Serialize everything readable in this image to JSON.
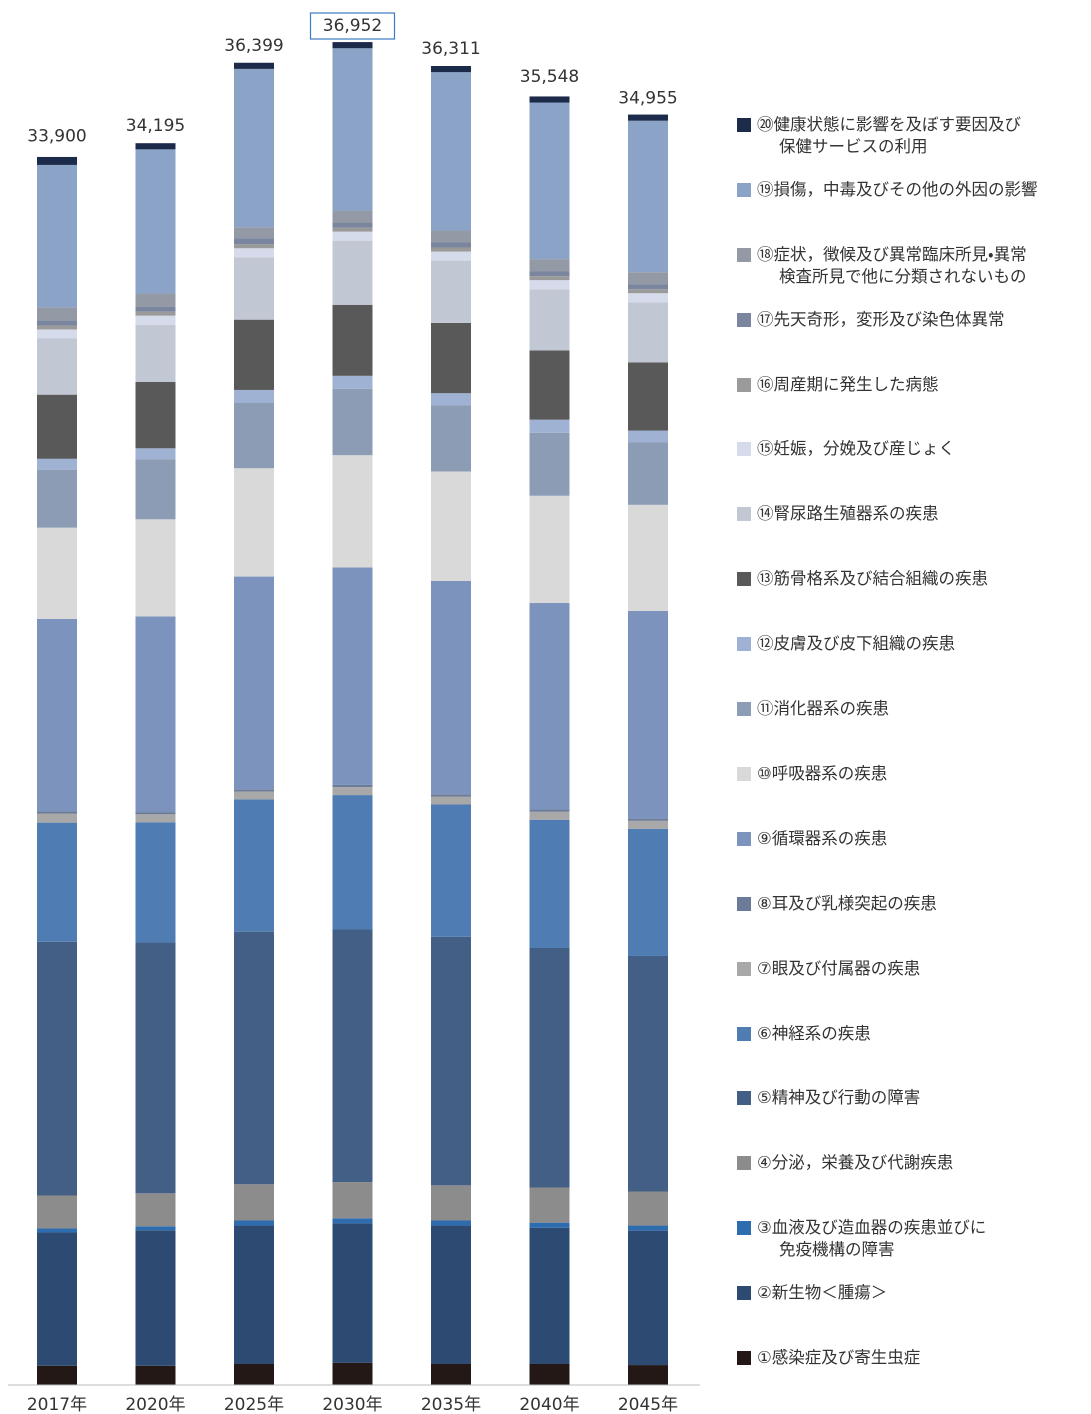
{
  "chart_data": {
    "type": "stacked_bar",
    "categories": [
      "2017年",
      "2020年",
      "2025年",
      "2030年",
      "2035年",
      "2040年",
      "2045年"
    ],
    "totals": [
      33900,
      34195,
      36399,
      36952,
      36311,
      35548,
      34955
    ],
    "total_labels": [
      "33,900",
      "34,195",
      "36,399",
      "36,952",
      "36,311",
      "35,548",
      "34,955"
    ],
    "series": [
      {
        "name": "①感染症及び寄生虫症",
        "color": "#231815",
        "values": [
          530,
          530,
          580,
          610,
          580,
          580,
          550
        ]
      },
      {
        "name": "②新生物＜腫瘍＞",
        "color": "#2c4a72",
        "values": [
          3680,
          3740,
          3820,
          3850,
          3820,
          3760,
          3710
        ]
      },
      {
        "name": "③血液及び造血器の疾患並びに\n免疫機構の障害",
        "color": "#2e6cb0",
        "values": [
          110,
          110,
          140,
          140,
          140,
          140,
          140
        ]
      },
      {
        "name": "④分泌，栄養及び代謝疾患",
        "color": "#8c8c8c",
        "values": [
          910,
          910,
          1000,
          1000,
          970,
          970,
          940
        ]
      },
      {
        "name": "⑤精神及び行動の障害",
        "color": "#435f85",
        "values": [
          7000,
          6920,
          6970,
          6970,
          6860,
          6610,
          6500
        ]
      },
      {
        "name": "⑥神経系の疾患",
        "color": "#4f7db3",
        "values": [
          3290,
          3320,
          3650,
          3710,
          3650,
          3540,
          3510
        ]
      },
      {
        "name": "⑦眼及び付属器の疾患",
        "color": "#a8a8a8",
        "values": [
          250,
          220,
          220,
          220,
          220,
          220,
          220
        ]
      },
      {
        "name": "⑧耳及び乳様突起の疾患",
        "color": "#6b7c99",
        "values": [
          60,
          60,
          60,
          60,
          60,
          60,
          60
        ]
      },
      {
        "name": "⑨循環器系の疾患",
        "color": "#7b93bd",
        "values": [
          5310,
          5400,
          5870,
          6000,
          5890,
          5700,
          5730
        ]
      },
      {
        "name": "⑩呼吸器系の疾患",
        "color": "#d9d9d9",
        "values": [
          2520,
          2680,
          2990,
          3100,
          3020,
          2960,
          2930
        ]
      },
      {
        "name": "⑪消化器系の疾患",
        "color": "#8c9cb5",
        "values": [
          1600,
          1660,
          1800,
          1830,
          1830,
          1740,
          1720
        ]
      },
      {
        "name": "⑫皮膚及び皮下組織の疾患",
        "color": "#9fb2d4",
        "values": [
          300,
          300,
          360,
          360,
          330,
          360,
          330
        ]
      },
      {
        "name": "⑬筋骨格系及び結合組織の疾患",
        "color": "#595959",
        "values": [
          1770,
          1830,
          1940,
          1960,
          1940,
          1910,
          1880
        ]
      },
      {
        "name": "⑭腎尿路生殖器系の疾患",
        "color": "#c2c7d4",
        "values": [
          1550,
          1580,
          1720,
          1770,
          1720,
          1690,
          1660
        ]
      },
      {
        "name": "⑮妊娠，分娩及び産じょく",
        "color": "#d5dbea",
        "values": [
          250,
          250,
          250,
          250,
          250,
          250,
          250
        ]
      },
      {
        "name": "⑯周産期に発生した病態",
        "color": "#9a9a9a",
        "values": [
          110,
          110,
          110,
          110,
          110,
          110,
          110
        ]
      },
      {
        "name": "⑰先天奇形，変形及び染色体異常",
        "color": "#7a869e",
        "values": [
          140,
          140,
          170,
          140,
          140,
          140,
          140
        ]
      },
      {
        "name": "⑱症状，徴候及び異常臨床所見・異常\n検査所見で他に分類されないもの",
        "color": "#939aa6",
        "values": [
          360,
          360,
          300,
          330,
          330,
          330,
          330
        ]
      },
      {
        "name": "⑲損傷，中毒及びその他の外因の影響",
        "color": "#8aa3c7",
        "values": [
          3930,
          3980,
          4370,
          4480,
          4370,
          4320,
          4180
        ]
      },
      {
        "name": "⑳健康状態に影響を及ぼす要因及び\n保健サービスの利用",
        "color": "#1c2b4a",
        "values": [
          220,
          170,
          170,
          170,
          170,
          170,
          170
        ]
      }
    ]
  }
}
